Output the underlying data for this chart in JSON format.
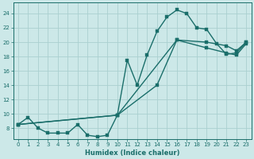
{
  "xlabel": "Humidex (Indice chaleur)",
  "xlim": [
    -0.5,
    23.5
  ],
  "ylim": [
    6.5,
    25.5
  ],
  "xticks": [
    0,
    1,
    2,
    3,
    4,
    5,
    6,
    7,
    8,
    9,
    10,
    11,
    12,
    13,
    14,
    15,
    16,
    17,
    18,
    19,
    20,
    21,
    22,
    23
  ],
  "yticks": [
    8,
    10,
    12,
    14,
    16,
    18,
    20,
    22,
    24
  ],
  "ytick_labels": [
    "8",
    "10",
    "12",
    "14",
    "16",
    "18",
    "20",
    "22",
    "24"
  ],
  "bg_color": "#cce8e8",
  "line_color": "#1a6e6a",
  "grid_color": "#aad0d0",
  "line1_x": [
    0,
    1,
    2,
    3,
    4,
    5,
    6,
    7,
    8,
    9,
    10,
    11,
    12,
    13,
    14,
    15,
    16,
    17,
    18,
    19,
    20,
    21,
    22,
    23
  ],
  "line1_y": [
    8.5,
    9.5,
    8.0,
    7.3,
    7.3,
    7.3,
    8.5,
    7.0,
    6.8,
    7.0,
    9.8,
    17.5,
    14.0,
    18.2,
    21.5,
    23.5,
    24.5,
    24.0,
    22.0,
    21.8,
    19.8,
    18.3,
    18.5,
    20.0
  ],
  "line2_x": [
    0,
    10,
    16,
    19,
    21,
    22,
    23
  ],
  "line2_y": [
    8.5,
    9.8,
    20.3,
    20.0,
    19.5,
    18.8,
    20.0
  ],
  "line3_x": [
    0,
    10,
    14,
    16,
    19,
    21,
    22,
    23
  ],
  "line3_y": [
    8.5,
    9.8,
    14.0,
    20.3,
    19.2,
    18.5,
    18.2,
    19.8
  ],
  "marker_size": 2.5,
  "line_width": 1.0,
  "tick_fontsize": 5.0,
  "xlabel_fontsize": 6.0
}
